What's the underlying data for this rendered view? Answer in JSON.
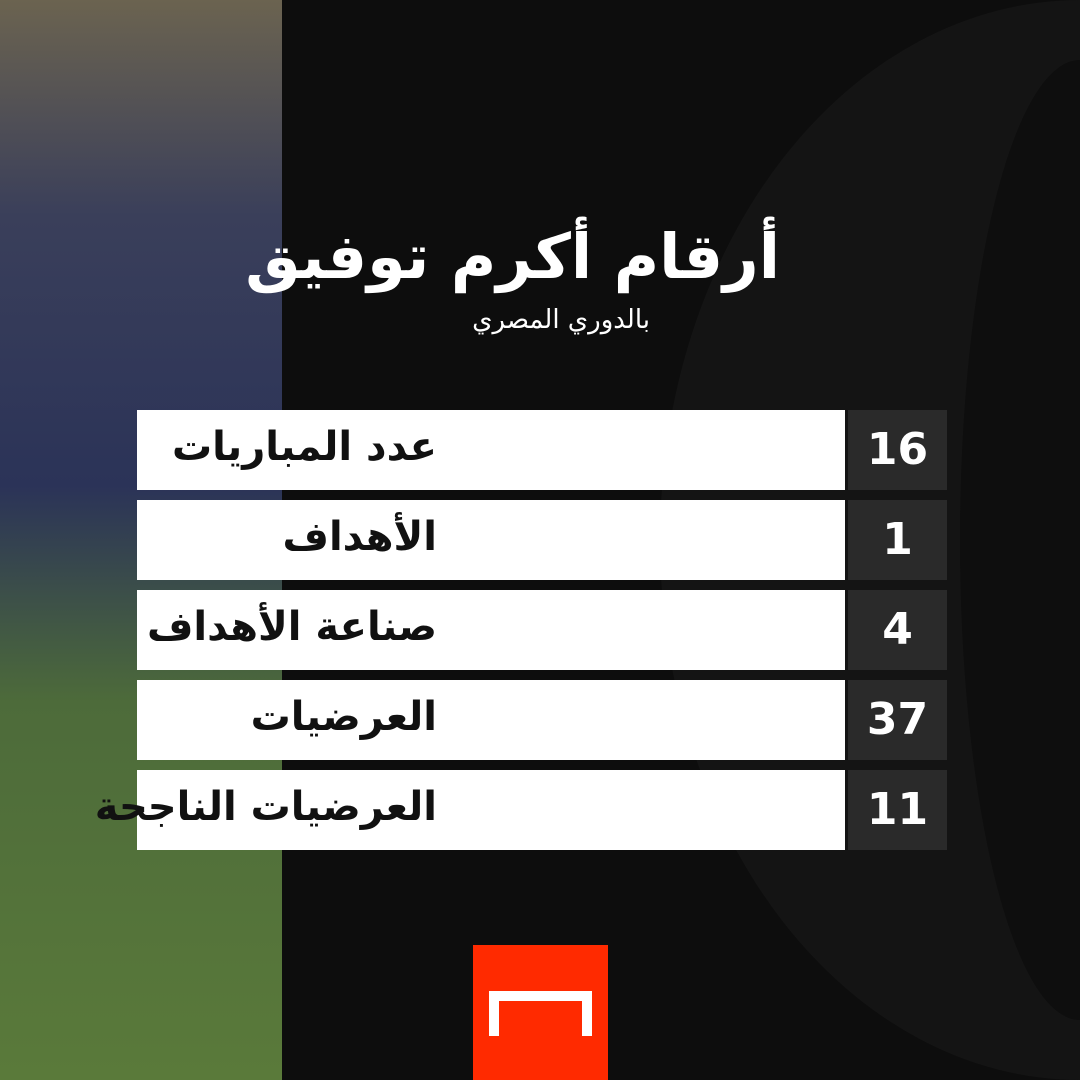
{
  "title": "أرقام أكرم توفيق",
  "subtitle": "بالدوري المصري",
  "stats": [
    {
      "label": "عدد المباريات",
      "value": "16"
    },
    {
      "label": "الأهداف",
      "value": "1"
    },
    {
      "label": "صناعة الأهداف",
      "value": "4"
    },
    {
      "label": "العرضيات",
      "value": "37"
    },
    {
      "label": "العرضيات الناجحة",
      "value": "11"
    }
  ],
  "colors": {
    "brand": "#ff2a00",
    "background": "#0d0d0d"
  },
  "logo": "goal-logo"
}
